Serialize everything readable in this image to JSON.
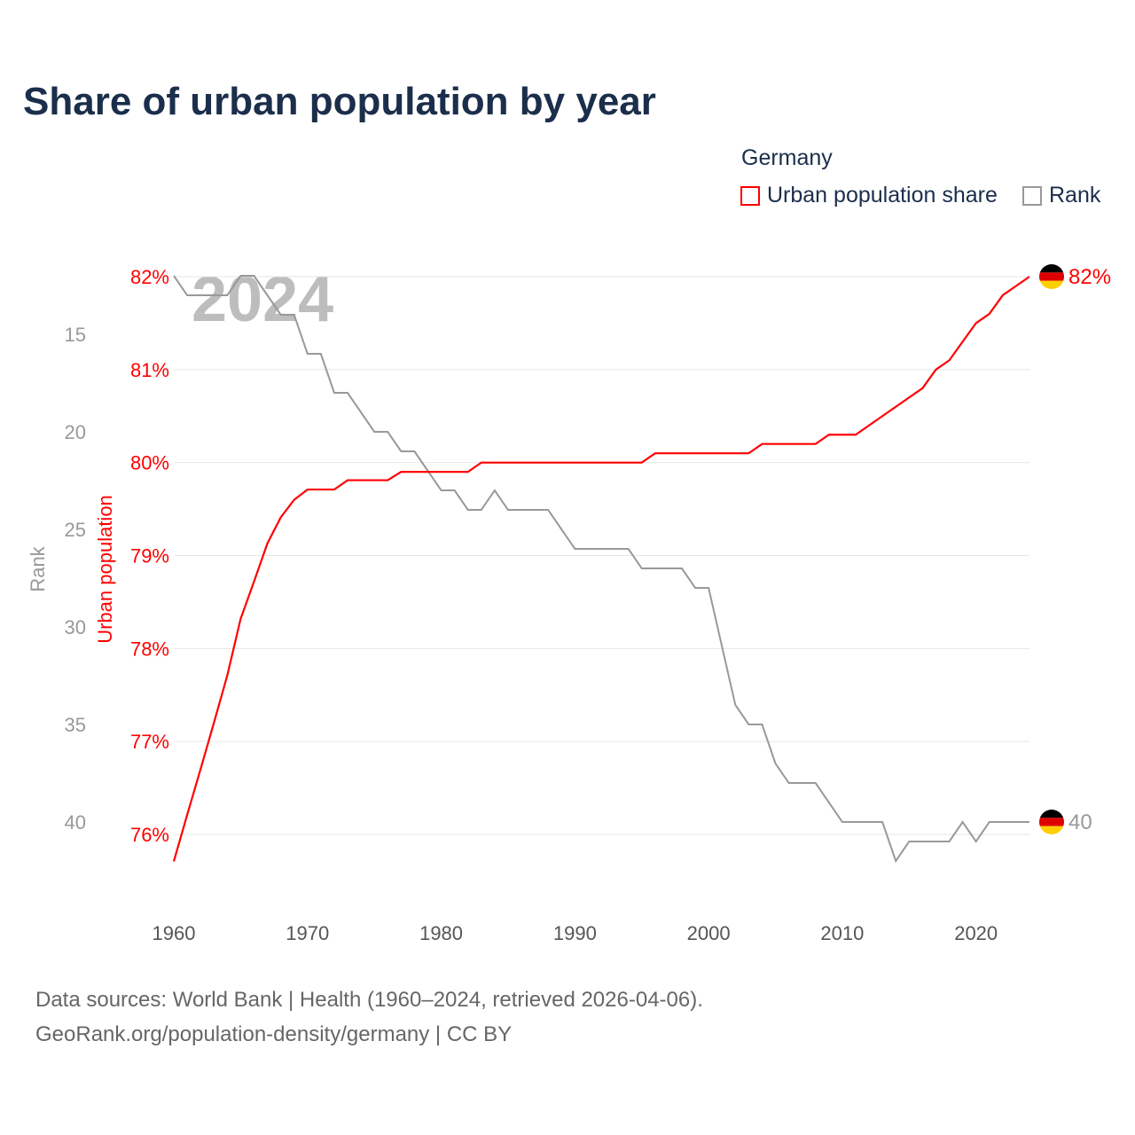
{
  "chart_data": {
    "type": "line",
    "title": "Share of urban population by year",
    "legend": {
      "title": "Germany",
      "placement": "top-right",
      "entries": [
        "Urban population share",
        "Rank"
      ]
    },
    "watermark_year": "2024",
    "x": [
      1960,
      1961,
      1962,
      1963,
      1964,
      1965,
      1966,
      1967,
      1968,
      1969,
      1970,
      1971,
      1972,
      1973,
      1974,
      1975,
      1976,
      1977,
      1978,
      1979,
      1980,
      1981,
      1982,
      1983,
      1984,
      1985,
      1986,
      1987,
      1988,
      1989,
      1990,
      1991,
      1992,
      1993,
      1994,
      1995,
      1996,
      1997,
      1998,
      1999,
      2000,
      2001,
      2002,
      2003,
      2004,
      2005,
      2006,
      2007,
      2008,
      2009,
      2010,
      2011,
      2012,
      2013,
      2014,
      2015,
      2016,
      2017,
      2018,
      2019,
      2020,
      2021,
      2022,
      2023,
      2024
    ],
    "series": [
      {
        "name": "Urban population share",
        "axis": "left",
        "color": "#ff0000",
        "values": [
          75.71,
          76.21,
          76.7,
          77.2,
          77.71,
          78.32,
          78.72,
          79.13,
          79.41,
          79.6,
          79.71,
          79.71,
          79.71,
          79.81,
          79.81,
          79.81,
          79.81,
          79.9,
          79.9,
          79.9,
          79.9,
          79.9,
          79.9,
          80.0,
          80.0,
          80.0,
          80.0,
          80.0,
          80.0,
          80.0,
          80.0,
          80.0,
          80.0,
          80.0,
          80.0,
          80.0,
          80.1,
          80.1,
          80.1,
          80.1,
          80.1,
          80.1,
          80.1,
          80.1,
          80.2,
          80.2,
          80.2,
          80.2,
          80.2,
          80.3,
          80.3,
          80.3,
          80.4,
          80.5,
          80.6,
          80.7,
          80.8,
          81.0,
          81.1,
          81.3,
          81.5,
          81.6,
          81.8,
          81.9,
          82.0
        ],
        "end_label": "82%"
      },
      {
        "name": "Rank",
        "axis": "right-inverted",
        "color": "#999999",
        "values": [
          12,
          13,
          13,
          13,
          13,
          12,
          12,
          13,
          14,
          14,
          16,
          16,
          18,
          18,
          19,
          20,
          20,
          21,
          21,
          22,
          23,
          23,
          24,
          24,
          23,
          24,
          24,
          24,
          24,
          25,
          26,
          26,
          26,
          26,
          26,
          27,
          27,
          27,
          27,
          28,
          28,
          31,
          34,
          35,
          35,
          37,
          38,
          38,
          38,
          39,
          40,
          40,
          40,
          40,
          42,
          41,
          41,
          41,
          41,
          40,
          41,
          40,
          40,
          40,
          40
        ],
        "end_label": "40"
      }
    ],
    "xlabel": "",
    "xlim": [
      1960,
      2024
    ],
    "x_ticks": [
      "1960",
      "1970",
      "1980",
      "1990",
      "2000",
      "2010",
      "2020"
    ],
    "ylabel": "Urban population",
    "ylim": [
      75.7,
      82
    ],
    "y_ticks": [
      "76%",
      "77%",
      "78%",
      "79%",
      "80%",
      "81%",
      "82%"
    ],
    "y2label": "Rank",
    "y2lim": [
      12,
      42
    ],
    "y2_ticks": [
      "15",
      "20",
      "25",
      "30",
      "35",
      "40"
    ],
    "grid": true
  },
  "footer": {
    "line1": "Data sources: World Bank | Health (1960–2024, retrieved 2026-04-06).",
    "line2": "GeoRank.org/population-density/germany | CC BY"
  }
}
